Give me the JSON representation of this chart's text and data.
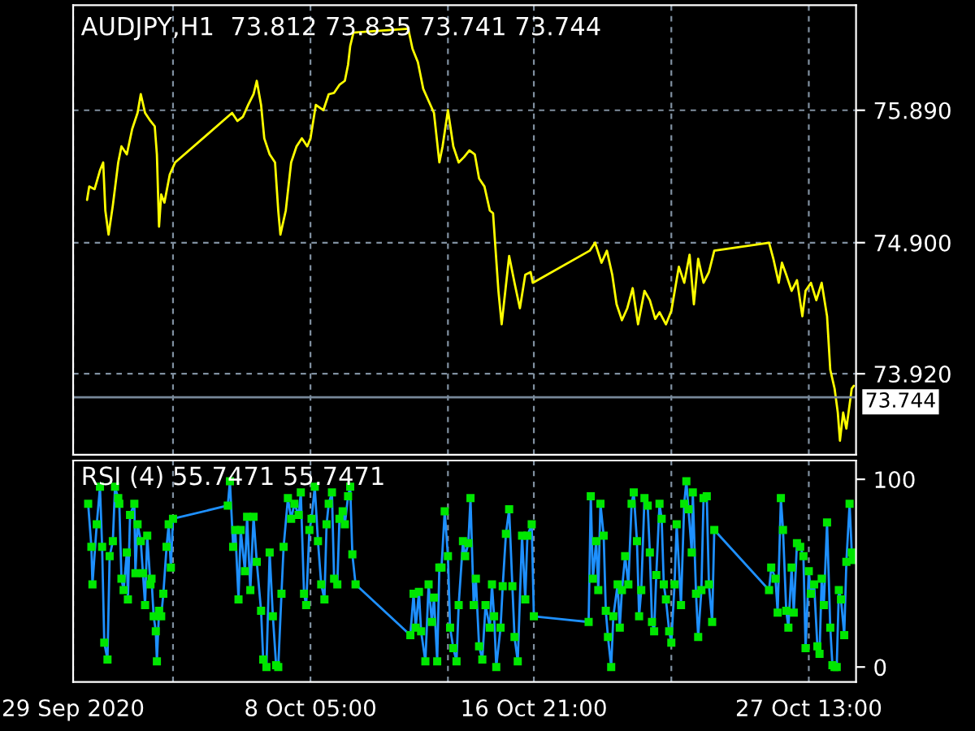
{
  "chart_data": [
    {
      "type": "line",
      "title": "AUDJPY,H1  73.812 73.835 73.741 73.744",
      "x": [
        "2020-09-29T13:00",
        "2020-09-29T15:00",
        "2020-09-29T20:00",
        "2020-09-30T01:00",
        "2020-09-30T04:00",
        "2020-09-30T06:00",
        "2020-09-30T09:00",
        "2020-09-30T13:00",
        "2020-09-30T18:00",
        "2020-09-30T21:00",
        "2020-10-01T02:00",
        "2020-10-01T07:00",
        "2020-10-01T12:00",
        "2020-10-01T15:00",
        "2020-10-01T19:00",
        "2020-10-02T00:00",
        "2020-10-02T04:00",
        "2020-10-02T06:00",
        "2020-10-02T08:00",
        "2020-10-02T10:00",
        "2020-10-02T13:00",
        "2020-10-02T18:00",
        "2020-10-02T23:00",
        "2020-10-05T04:00",
        "2020-10-05T09:00",
        "2020-10-05T14:00",
        "2020-10-05T19:00",
        "2020-10-06T00:00",
        "2020-10-06T03:00",
        "2020-10-06T07:00",
        "2020-10-06T10:00",
        "2020-10-06T15:00",
        "2020-10-06T20:00",
        "2020-10-06T23:00",
        "2020-10-07T01:00",
        "2020-10-07T06:00",
        "2020-10-07T11:00",
        "2020-10-07T16:00",
        "2020-10-07T21:00",
        "2020-10-08T02:00",
        "2020-10-08T05:00",
        "2020-10-08T10:00",
        "2020-10-08T17:00",
        "2020-10-08T22:00",
        "2020-10-09T03:00",
        "2020-10-09T08:00",
        "2020-10-09T13:00",
        "2020-10-09T16:00",
        "2020-10-09T18:00",
        "2020-10-09T21:00",
        "2020-10-12T00:00",
        "2020-10-12T04:00",
        "2020-10-12T09:00",
        "2020-10-12T14:00",
        "2020-10-12T19:00",
        "2020-10-13T00:00",
        "2020-10-13T05:00",
        "2020-10-13T08:00",
        "2020-10-13T13:00",
        "2020-10-13T18:00",
        "2020-10-13T23:00",
        "2020-10-14T04:00",
        "2020-10-14T09:00",
        "2020-10-14T14:00",
        "2020-10-14T18:00",
        "2020-10-14T23:00",
        "2020-10-15T04:00",
        "2020-10-15T07:00",
        "2020-10-15T12:00",
        "2020-10-15T15:00",
        "2020-10-15T22:00",
        "2020-10-16T03:00",
        "2020-10-16T08:00",
        "2020-10-16T13:00",
        "2020-10-16T18:00",
        "2020-10-16T20:00",
        "2020-10-19T01:00",
        "2020-10-19T06:00",
        "2020-10-19T12:00",
        "2020-10-19T17:00",
        "2020-10-19T22:00",
        "2020-10-20T02:00",
        "2020-10-20T07:00",
        "2020-10-20T12:00",
        "2020-10-20T17:00",
        "2020-10-20T22:00",
        "2020-10-21T04:00",
        "2020-10-21T09:00",
        "2020-10-21T14:00",
        "2020-10-21T18:00",
        "2020-10-22T00:00",
        "2020-10-22T05:00",
        "2020-10-22T12:00",
        "2020-10-22T17:00",
        "2020-10-22T22:00",
        "2020-10-23T02:00",
        "2020-10-23T06:00",
        "2020-10-23T11:00",
        "2020-10-23T16:00",
        "2020-10-23T21:00",
        "2020-10-26T00:00",
        "2020-10-26T04:00",
        "2020-10-26T09:00",
        "2020-10-26T12:00",
        "2020-10-26T16:00",
        "2020-10-26T21:00",
        "2020-10-27T02:00",
        "2020-10-27T07:00",
        "2020-10-27T10:00",
        "2020-10-27T15:00",
        "2020-10-27T20:00",
        "2020-10-28T01:00",
        "2020-10-28T06:00",
        "2020-10-28T09:00",
        "2020-10-28T13:00",
        "2020-10-28T16:00",
        "2020-10-28T18:00",
        "2020-10-28T21:00",
        "2020-10-29T00:00",
        "2020-10-29T02:00",
        "2020-10-29T05:00",
        "2020-10-29T07:00"
      ],
      "series": [
        {
          "color": "#ffff00",
          "values": [
            75.22,
            75.32,
            75.3,
            75.44,
            75.5,
            75.14,
            74.96,
            75.18,
            75.5,
            75.62,
            75.56,
            75.75,
            75.87,
            76.01,
            75.87,
            75.81,
            75.77,
            75.56,
            75.02,
            75.26,
            75.2,
            75.41,
            75.5,
            75.87,
            75.81,
            75.84,
            75.93,
            76.01,
            76.11,
            75.93,
            75.68,
            75.56,
            75.5,
            75.14,
            74.96,
            75.14,
            75.5,
            75.62,
            75.68,
            75.62,
            75.68,
            75.93,
            75.89,
            76.01,
            76.02,
            76.08,
            76.11,
            76.23,
            76.37,
            76.47,
            76.5,
            76.35,
            76.25,
            76.05,
            75.96,
            75.87,
            75.5,
            75.62,
            75.89,
            75.62,
            75.5,
            75.54,
            75.59,
            75.56,
            75.38,
            75.32,
            75.14,
            75.12,
            74.54,
            74.29,
            74.8,
            74.6,
            74.41,
            74.66,
            74.68,
            74.6,
            74.84,
            74.9,
            74.75,
            74.84,
            74.66,
            74.44,
            74.32,
            74.41,
            74.56,
            74.29,
            74.54,
            74.47,
            74.33,
            74.38,
            74.29,
            74.39,
            74.72,
            74.6,
            74.81,
            74.44,
            74.78,
            74.6,
            74.68,
            74.84,
            74.9,
            74.78,
            74.6,
            74.75,
            74.66,
            74.54,
            74.62,
            74.35,
            74.54,
            74.6,
            74.47,
            74.6,
            74.35,
            73.95,
            73.81,
            73.63,
            73.42,
            73.63,
            73.51,
            73.63,
            73.81,
            73.83
          ]
        }
      ],
      "xlim": [
        "2020-09-29T00:00",
        "2020-10-29T09:00"
      ],
      "xticks": [
        {
          "value": "2020-09-29T00:00",
          "label": null
        },
        {
          "value": "2020-10-02T21:00",
          "label": null
        },
        {
          "value": "2020-10-08T05:00",
          "label": null
        },
        {
          "value": "2020-10-13T13:00",
          "label": null
        },
        {
          "value": "2020-10-16T21:00",
          "label": null
        },
        {
          "value": "2020-10-22T05:00",
          "label": null
        },
        {
          "value": "2020-10-27T13:00",
          "label": null
        }
      ],
      "ylim": [
        73.315,
        76.676
      ],
      "yticks": [
        {
          "value": 73.92,
          "label": "73.920"
        },
        {
          "value": 74.9,
          "label": "74.900"
        },
        {
          "value": 75.89,
          "label": "75.890"
        }
      ],
      "grid": true,
      "tick_labels": "y",
      "ref_lines": [
        {
          "axis": "y",
          "value": 73.744,
          "label": "73.744",
          "color": "#778899"
        }
      ]
    },
    {
      "type": "line",
      "title": "RSI (4) 55.7471 55.7471",
      "x": [
        "2020-09-29T14:00",
        "2020-09-29T17:00",
        "2020-09-29T18:00",
        "2020-09-29T22:00",
        "2020-09-30T01:00",
        "2020-09-30T03:00",
        "2020-09-30T05:00",
        "2020-09-30T08:00",
        "2020-09-30T10:00",
        "2020-09-30T13:00",
        "2020-09-30T15:00",
        "2020-09-30T18:00",
        "2020-09-30T19:00",
        "2020-09-30T21:00",
        "2020-09-30T23:00",
        "2020-10-01T02:00",
        "2020-10-01T03:00",
        "2020-10-01T05:00",
        "2020-10-01T09:00",
        "2020-10-01T10:00",
        "2020-10-01T12:00",
        "2020-10-01T15:00",
        "2020-10-01T17:00",
        "2020-10-01T19:00",
        "2020-10-01T21:00",
        "2020-10-02T00:00",
        "2020-10-02T01:00",
        "2020-10-02T03:00",
        "2020-10-02T05:00",
        "2020-10-02T06:00",
        "2020-10-02T08:00",
        "2020-10-02T10:00",
        "2020-10-02T12:00",
        "2020-10-02T15:00",
        "2020-10-02T17:00",
        "2020-10-02T19:00",
        "2020-10-02T21:00",
        "2020-10-05T00:00",
        "2020-10-05T02:00",
        "2020-10-05T05:00",
        "2020-10-05T07:00",
        "2020-10-05T10:00",
        "2020-10-05T12:00",
        "2020-10-05T16:00",
        "2020-10-05T18:00",
        "2020-10-05T21:00",
        "2020-10-06T00:00",
        "2020-10-06T03:00",
        "2020-10-06T07:00",
        "2020-10-06T09:00",
        "2020-10-06T12:00",
        "2020-10-06T15:00",
        "2020-10-06T18:00",
        "2020-10-06T21:00",
        "2020-10-06T23:00",
        "2020-10-07T02:00",
        "2020-10-07T04:00",
        "2020-10-07T08:00",
        "2020-10-07T11:00",
        "2020-10-07T14:00",
        "2020-10-07T18:00",
        "2020-10-07T20:00",
        "2020-10-07T23:00",
        "2020-10-08T01:00",
        "2020-10-08T04:00",
        "2020-10-08T06:00",
        "2020-10-08T09:00",
        "2020-10-08T12:00",
        "2020-10-08T15:00",
        "2020-10-08T18:00",
        "2020-10-08T20:00",
        "2020-10-08T22:00",
        "2020-10-09T01:00",
        "2020-10-09T03:00",
        "2020-10-09T06:00",
        "2020-10-09T08:00",
        "2020-10-09T11:00",
        "2020-10-09T13:00",
        "2020-10-09T16:00",
        "2020-10-09T18:00",
        "2020-10-09T20:00",
        "2020-10-09T23:00",
        "2020-10-12T02:00",
        "2020-10-12T05:00",
        "2020-10-12T07:00",
        "2020-10-12T10:00",
        "2020-10-12T12:00",
        "2020-10-12T16:00",
        "2020-10-12T19:00",
        "2020-10-12T22:00",
        "2020-10-13T00:00",
        "2020-10-13T03:00",
        "2020-10-13T05:00",
        "2020-10-13T07:00",
        "2020-10-13T10:00",
        "2020-10-13T13:00",
        "2020-10-13T15:00",
        "2020-10-13T18:00",
        "2020-10-13T21:00",
        "2020-10-13T23:00",
        "2020-10-14T03:00",
        "2020-10-14T05:00",
        "2020-10-14T08:00",
        "2020-10-14T10:00",
        "2020-10-14T13:00",
        "2020-10-14T15:00",
        "2020-10-14T18:00",
        "2020-10-14T21:00",
        "2020-10-15T00:00",
        "2020-10-15T04:00",
        "2020-10-15T06:00",
        "2020-10-15T08:00",
        "2020-10-15T10:00",
        "2020-10-15T14:00",
        "2020-10-15T16:00",
        "2020-10-15T19:00",
        "2020-10-15T22:00",
        "2020-10-16T01:00",
        "2020-10-16T03:00",
        "2020-10-16T06:00",
        "2020-10-16T10:00",
        "2020-10-16T13:00",
        "2020-10-16T15:00",
        "2020-10-16T19:00",
        "2020-10-16T21:00",
        "2020-10-19T00:00",
        "2020-10-19T02:00",
        "2020-10-19T04:00",
        "2020-10-19T07:00",
        "2020-10-19T09:00",
        "2020-10-19T11:00",
        "2020-10-19T14:00",
        "2020-10-19T16:00",
        "2020-10-19T18:00",
        "2020-10-19T21:00",
        "2020-10-19T23:00",
        "2020-10-20T03:00",
        "2020-10-20T05:00",
        "2020-10-20T07:00",
        "2020-10-20T10:00",
        "2020-10-20T13:00",
        "2020-10-20T16:00",
        "2020-10-20T18:00",
        "2020-10-20T21:00",
        "2020-10-20T23:00",
        "2020-10-21T01:00",
        "2020-10-21T04:00",
        "2020-10-21T07:00",
        "2020-10-21T09:00",
        "2020-10-21T11:00",
        "2020-10-21T13:00",
        "2020-10-21T15:00",
        "2020-10-21T18:00",
        "2020-10-21T20:00",
        "2020-10-21T22:00",
        "2020-10-22T00:00",
        "2020-10-22T03:00",
        "2020-10-22T05:00",
        "2020-10-22T08:00",
        "2020-10-22T10:00",
        "2020-10-22T14:00",
        "2020-10-22T17:00",
        "2020-10-22T19:00",
        "2020-10-22T21:00",
        "2020-10-23T00:00",
        "2020-10-23T01:00",
        "2020-10-23T04:00",
        "2020-10-23T06:00",
        "2020-10-23T09:00",
        "2020-10-23T11:00",
        "2020-10-23T14:00",
        "2020-10-23T16:00",
        "2020-10-23T19:00",
        "2020-10-23T21:00",
        "2020-10-26T00:00",
        "2020-10-26T02:00",
        "2020-10-26T06:00",
        "2020-10-26T08:00",
        "2020-10-26T11:00",
        "2020-10-26T13:00",
        "2020-10-26T16:00",
        "2020-10-26T18:00",
        "2020-10-26T21:00",
        "2020-10-26T23:00",
        "2020-10-27T02:00",
        "2020-10-27T05:00",
        "2020-10-27T08:00",
        "2020-10-27T10:00",
        "2020-10-27T13:00",
        "2020-10-27T15:00",
        "2020-10-27T18:00",
        "2020-10-27T21:00",
        "2020-10-27T23:00",
        "2020-10-28T01:00",
        "2020-10-28T03:00",
        "2020-10-28T06:00",
        "2020-10-28T09:00",
        "2020-10-28T11:00",
        "2020-10-28T13:00",
        "2020-10-28T15:00",
        "2020-10-28T17:00",
        "2020-10-28T19:00",
        "2020-10-28T22:00",
        "2020-10-29T00:00",
        "2020-10-29T03:00",
        "2020-10-29T05:00",
        "2020-10-29T06:00"
      ],
      "series": [
        {
          "type": "line",
          "color": "#1e90ff",
          "values": [
            87,
            64,
            44,
            76,
            96,
            64,
            13,
            4,
            59,
            67,
            96,
            90,
            87,
            47,
            41,
            61,
            36,
            81,
            87,
            50,
            76,
            67,
            50,
            33,
            70,
            44,
            47,
            27,
            19,
            3,
            30,
            27,
            39,
            64,
            76,
            53,
            79,
            86,
            99,
            64,
            73,
            36,
            73,
            51,
            80,
            41,
            80,
            56,
            30,
            4,
            0,
            61,
            27,
            1,
            0,
            39,
            64,
            90,
            79,
            87,
            81,
            93,
            39,
            33,
            73,
            79,
            96,
            67,
            44,
            36,
            76,
            87,
            93,
            47,
            44,
            79,
            83,
            76,
            91,
            96,
            60,
            44,
            17,
            39,
            21,
            40,
            19,
            3,
            44,
            24,
            37,
            3,
            53,
            53,
            83,
            59,
            21,
            10,
            3,
            33,
            67,
            59,
            66,
            90,
            33,
            47,
            11,
            4,
            33,
            21,
            44,
            27,
            0,
            21,
            43,
            71,
            84,
            43,
            16,
            3,
            70,
            36,
            70,
            76,
            27,
            24,
            91,
            47,
            67,
            41,
            87,
            70,
            30,
            16,
            0,
            27,
            44,
            21,
            41,
            59,
            44,
            87,
            93,
            67,
            27,
            41,
            90,
            86,
            61,
            24,
            19,
            49,
            87,
            79,
            44,
            36,
            19,
            13,
            44,
            76,
            33,
            87,
            99,
            84,
            61,
            93,
            39,
            16,
            41,
            90,
            91,
            44,
            24,
            73,
            41,
            53,
            47,
            29,
            90,
            73,
            30,
            21,
            53,
            29,
            66,
            64,
            59,
            10,
            51,
            39,
            44,
            11,
            7,
            47,
            33,
            77,
            21,
            1,
            0,
            0,
            41,
            36,
            17,
            56,
            87,
            61,
            57
          ]
        },
        {
          "type": "scatter",
          "color": "#00e600",
          "marker": "square",
          "values": [
            87,
            64,
            44,
            76,
            96,
            64,
            13,
            4,
            59,
            67,
            96,
            90,
            87,
            47,
            41,
            61,
            36,
            81,
            87,
            50,
            76,
            67,
            50,
            33,
            70,
            44,
            47,
            27,
            19,
            3,
            30,
            27,
            39,
            64,
            76,
            53,
            79,
            86,
            99,
            64,
            73,
            36,
            73,
            51,
            80,
            41,
            80,
            56,
            30,
            4,
            0,
            61,
            27,
            1,
            0,
            39,
            64,
            90,
            79,
            87,
            81,
            93,
            39,
            33,
            73,
            79,
            96,
            67,
            44,
            36,
            76,
            87,
            93,
            47,
            44,
            79,
            83,
            76,
            91,
            96,
            60,
            44,
            17,
            39,
            21,
            40,
            19,
            3,
            44,
            24,
            37,
            3,
            53,
            53,
            83,
            59,
            21,
            10,
            3,
            33,
            67,
            59,
            66,
            90,
            33,
            47,
            11,
            4,
            33,
            21,
            44,
            27,
            0,
            21,
            43,
            71,
            84,
            43,
            16,
            3,
            70,
            36,
            70,
            76,
            27,
            24,
            91,
            47,
            67,
            41,
            87,
            70,
            30,
            16,
            0,
            27,
            44,
            21,
            41,
            59,
            44,
            87,
            93,
            67,
            27,
            41,
            90,
            86,
            61,
            24,
            19,
            49,
            87,
            79,
            44,
            36,
            19,
            13,
            44,
            76,
            33,
            87,
            99,
            84,
            61,
            93,
            39,
            16,
            41,
            90,
            91,
            44,
            24,
            73,
            41,
            53,
            47,
            29,
            90,
            73,
            30,
            21,
            53,
            29,
            66,
            64,
            59,
            10,
            51,
            39,
            44,
            11,
            7,
            47,
            33,
            77,
            21,
            1,
            0,
            0,
            41,
            36,
            17,
            56,
            87,
            61,
            57
          ]
        }
      ],
      "xlim": [
        "2020-09-29T00:00",
        "2020-10-29T09:00"
      ],
      "xticks": [
        {
          "value": "2020-09-29T00:00",
          "label": "29 Sep 2020"
        },
        {
          "value": "2020-10-02T21:00",
          "label": null
        },
        {
          "value": "2020-10-08T05:00",
          "label": "8 Oct 05:00"
        },
        {
          "value": "2020-10-13T13:00",
          "label": null
        },
        {
          "value": "2020-10-16T21:00",
          "label": "16 Oct 21:00"
        },
        {
          "value": "2020-10-22T05:00",
          "label": null
        },
        {
          "value": "2020-10-27T13:00",
          "label": "27 Oct 13:00"
        }
      ],
      "ylim": [
        -8,
        110
      ],
      "yticks": [
        0,
        100
      ],
      "grid": "x"
    }
  ]
}
